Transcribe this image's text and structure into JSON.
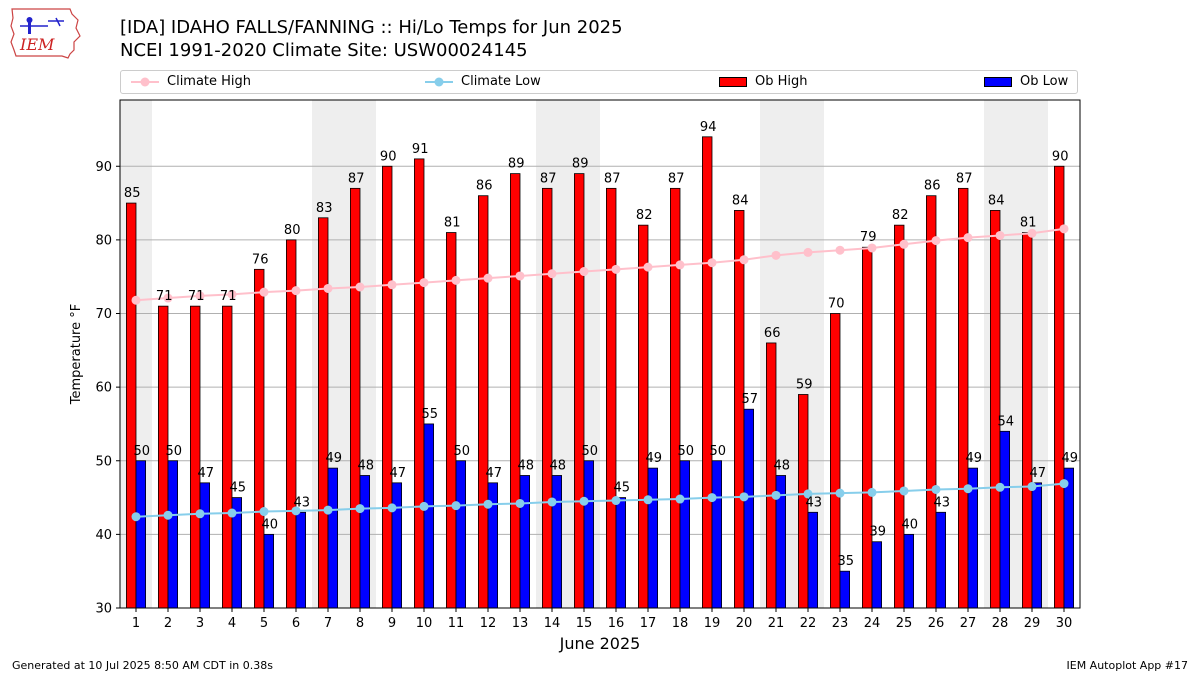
{
  "logo": {
    "text": "IEM"
  },
  "title": {
    "line1": "[IDA] IDAHO FALLS/FANNING :: Hi/Lo Temps for Jun 2025",
    "line2": "NCEI 1991-2020 Climate Site: USW00024145"
  },
  "legend": {
    "climate_high": "Climate High",
    "climate_low": "Climate Low",
    "ob_high": "Ob High",
    "ob_low": "Ob Low"
  },
  "colors": {
    "ob_high": "#ff0000",
    "ob_low": "#0000ff",
    "climate_high": "#ffc0cb",
    "climate_low": "#87ceeb",
    "weekend_shade": "#eeeeee"
  },
  "footer": {
    "left": "Generated at 10 Jul 2025 8:50 AM CDT in 0.38s",
    "right": "IEM Autoplot App #17"
  },
  "chart_data": {
    "type": "bar",
    "xlabel": "June 2025",
    "ylabel": "Temperature °F",
    "ylim": [
      30,
      99
    ],
    "yticks": [
      30,
      40,
      50,
      60,
      70,
      80,
      90
    ],
    "grid": true,
    "categories": [
      1,
      2,
      3,
      4,
      5,
      6,
      7,
      8,
      9,
      10,
      11,
      12,
      13,
      14,
      15,
      16,
      17,
      18,
      19,
      20,
      21,
      22,
      23,
      24,
      25,
      26,
      27,
      28,
      29,
      30
    ],
    "shaded_days": [
      1,
      7,
      8,
      14,
      15,
      21,
      22,
      28,
      29
    ],
    "series": [
      {
        "name": "Ob High",
        "kind": "bar",
        "values": [
          85,
          71,
          71,
          71,
          76,
          80,
          83,
          87,
          90,
          91,
          81,
          86,
          89,
          87,
          89,
          87,
          82,
          87,
          94,
          84,
          66,
          59,
          70,
          79,
          82,
          86,
          87,
          84,
          81,
          90
        ]
      },
      {
        "name": "Ob Low",
        "kind": "bar",
        "values": [
          50,
          50,
          47,
          45,
          40,
          43,
          49,
          48,
          47,
          55,
          50,
          47,
          48,
          48,
          50,
          45,
          49,
          50,
          50,
          57,
          48,
          43,
          35,
          39,
          40,
          43,
          49,
          54,
          47,
          49
        ]
      },
      {
        "name": "Climate High",
        "kind": "line",
        "values": [
          71.8,
          72.1,
          72.4,
          72.6,
          72.9,
          73.1,
          73.4,
          73.6,
          73.9,
          74.2,
          74.5,
          74.8,
          75.1,
          75.4,
          75.7,
          76.0,
          76.3,
          76.6,
          76.9,
          77.3,
          77.9,
          78.3,
          78.6,
          78.9,
          79.4,
          79.9,
          80.3,
          80.6,
          80.9,
          81.5
        ]
      },
      {
        "name": "Climate Low",
        "kind": "line",
        "values": [
          42.4,
          42.6,
          42.8,
          42.9,
          43.1,
          43.2,
          43.3,
          43.5,
          43.6,
          43.8,
          43.9,
          44.1,
          44.2,
          44.4,
          44.5,
          44.6,
          44.7,
          44.8,
          45.0,
          45.1,
          45.3,
          45.5,
          45.6,
          45.7,
          45.9,
          46.1,
          46.2,
          46.4,
          46.5,
          46.9
        ]
      }
    ]
  }
}
